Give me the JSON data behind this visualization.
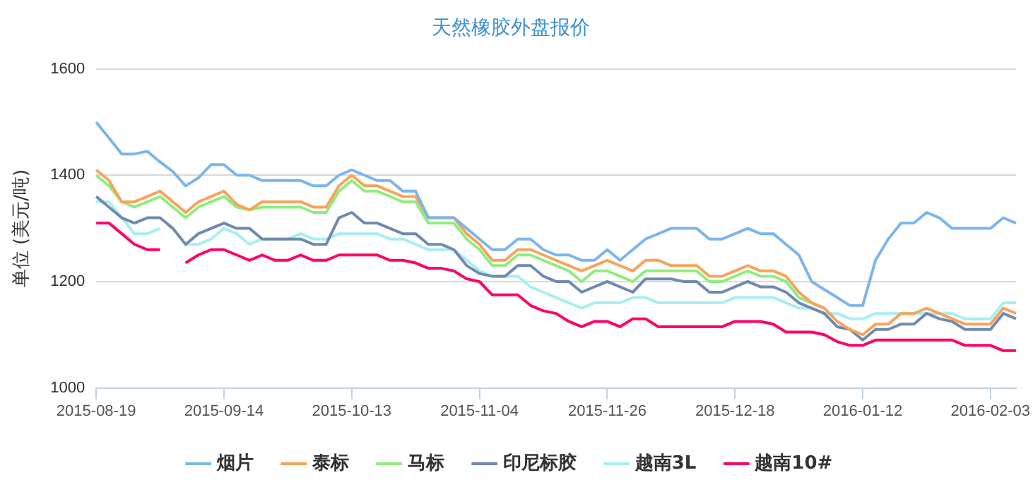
{
  "chart_data": {
    "type": "line",
    "title": "天然橡胶外盘报价",
    "ylabel": "单位 (美元/吨)",
    "categories": [
      "2015-08-19",
      null,
      null,
      null,
      null,
      null,
      null,
      null,
      null,
      null,
      "2015-09-14",
      null,
      null,
      null,
      null,
      null,
      null,
      null,
      null,
      null,
      "2015-10-13",
      null,
      null,
      null,
      null,
      null,
      null,
      null,
      null,
      null,
      "2015-11-04",
      null,
      null,
      null,
      null,
      null,
      null,
      null,
      null,
      null,
      "2015-11-26",
      null,
      null,
      null,
      null,
      null,
      null,
      null,
      null,
      null,
      "2015-12-18",
      null,
      null,
      null,
      null,
      null,
      null,
      null,
      null,
      null,
      "2016-01-12",
      null,
      null,
      null,
      null,
      null,
      null,
      null,
      null,
      null,
      "2016-02-03",
      null,
      null
    ],
    "ylim": [
      1000,
      1600
    ],
    "yticks": [
      1000,
      1200,
      1400,
      1600
    ],
    "grid": "y",
    "legend": "bottom",
    "marker": "none",
    "series": [
      {
        "name": "烟片",
        "color": "#7cb5ec",
        "values": [
          1500,
          1470,
          1440,
          1440,
          1445,
          1425,
          1407,
          1380,
          1395,
          1420,
          1420,
          1400,
          1400,
          1390,
          1390,
          1390,
          1390,
          1380,
          1380,
          1400,
          1410,
          1400,
          1390,
          1390,
          1370,
          1370,
          1320,
          1320,
          1320,
          1300,
          1280,
          1260,
          1260,
          1280,
          1280,
          1260,
          1250,
          1250,
          1240,
          1240,
          1260,
          1240,
          1260,
          1280,
          1290,
          1300,
          1300,
          1300,
          1280,
          1280,
          1290,
          1300,
          1290,
          1290,
          1270,
          1250,
          1200,
          1185,
          1170,
          1155,
          1155,
          1240,
          1280,
          1310,
          1310,
          1330,
          1320,
          1300,
          1300,
          1300,
          1300,
          1320,
          1310
        ]
      },
      {
        "name": "泰标",
        "color": "#f7a35c",
        "values": [
          1410,
          1390,
          1350,
          1350,
          1360,
          1370,
          1350,
          1330,
          1350,
          1360,
          1370,
          1345,
          1335,
          1350,
          1350,
          1350,
          1350,
          1340,
          1340,
          1380,
          1400,
          1380,
          1380,
          1370,
          1360,
          1360,
          1320,
          1320,
          1320,
          1290,
          1270,
          1240,
          1240,
          1260,
          1260,
          1250,
          1240,
          1230,
          1220,
          1230,
          1240,
          1230,
          1220,
          1240,
          1240,
          1230,
          1230,
          1230,
          1210,
          1210,
          1220,
          1230,
          1220,
          1220,
          1210,
          1180,
          1160,
          1150,
          1125,
          1110,
          1100,
          1120,
          1120,
          1140,
          1140,
          1150,
          1140,
          1130,
          1120,
          1120,
          1120,
          1150,
          1140
        ]
      },
      {
        "name": "马标",
        "color": "#90ed7d",
        "values": [
          1400,
          1380,
          1350,
          1340,
          1350,
          1360,
          1340,
          1320,
          1340,
          1350,
          1360,
          1340,
          1335,
          1340,
          1340,
          1340,
          1340,
          1330,
          1330,
          1370,
          1390,
          1370,
          1370,
          1360,
          1350,
          1350,
          1310,
          1310,
          1310,
          1280,
          1260,
          1230,
          1230,
          1250,
          1250,
          1240,
          1230,
          1220,
          1200,
          1220,
          1220,
          1210,
          1200,
          1220,
          1220,
          1220,
          1220,
          1220,
          1200,
          1200,
          1210,
          1220,
          1210,
          1210,
          1200,
          1170,
          1160,
          1150,
          null,
          null,
          null,
          null,
          null,
          null,
          null,
          null,
          null,
          null,
          null,
          null,
          null,
          null,
          null
        ]
      },
      {
        "name": "印尼标胶",
        "color": "#7189b0",
        "values": [
          1360,
          1340,
          1320,
          1310,
          1320,
          1320,
          1300,
          1270,
          1290,
          1300,
          1310,
          1300,
          1300,
          1280,
          1280,
          1280,
          1280,
          1270,
          1270,
          1320,
          1330,
          1310,
          1310,
          1300,
          1290,
          1290,
          1270,
          1270,
          1260,
          1230,
          1215,
          1210,
          1210,
          1230,
          1230,
          1210,
          1200,
          1200,
          1180,
          1190,
          1200,
          1190,
          1180,
          1205,
          1205,
          1205,
          1200,
          1200,
          1180,
          1180,
          1190,
          1200,
          1190,
          1190,
          1180,
          1160,
          1150,
          1140,
          1115,
          1110,
          1090,
          1110,
          1110,
          1120,
          1120,
          1140,
          1130,
          1125,
          1110,
          1110,
          1110,
          1140,
          1130
        ]
      },
      {
        "name": "越南3L",
        "color": "#a8eef0",
        "values": [
          1350,
          1350,
          1320,
          1290,
          1290,
          1300,
          null,
          1270,
          1270,
          1280,
          1300,
          1290,
          1270,
          1280,
          1280,
          1280,
          1290,
          1280,
          1280,
          1290,
          1290,
          1290,
          1290,
          1280,
          1280,
          1270,
          1260,
          1260,
          1260,
          1240,
          1220,
          1210,
          1210,
          1210,
          1190,
          1180,
          1170,
          1160,
          1150,
          1160,
          1160,
          1160,
          1170,
          1170,
          1160,
          1160,
          1160,
          1160,
          1160,
          1160,
          1170,
          1170,
          1170,
          1170,
          1160,
          1150,
          1150,
          1140,
          1140,
          1130,
          1130,
          1140,
          1140,
          1140,
          1140,
          1140,
          1140,
          1140,
          1130,
          1130,
          1130,
          1160,
          1160
        ]
      },
      {
        "name": "越南10#",
        "color": "#ff0066",
        "values": [
          1310,
          1310,
          1290,
          1270,
          1260,
          1260,
          null,
          1235,
          1250,
          1260,
          1260,
          1250,
          1240,
          1250,
          1240,
          1240,
          1250,
          1240,
          1240,
          1250,
          1250,
          1250,
          1250,
          1240,
          1240,
          1235,
          1225,
          1225,
          1220,
          1205,
          1200,
          1175,
          1175,
          1175,
          1155,
          1145,
          1140,
          1125,
          1115,
          1125,
          1125,
          1115,
          1130,
          1130,
          1115,
          1115,
          1115,
          1115,
          1115,
          1115,
          1125,
          1125,
          1125,
          1120,
          1105,
          1105,
          1105,
          1100,
          1087,
          1080,
          1080,
          1090,
          1090,
          1090,
          1090,
          1090,
          1090,
          1090,
          1080,
          1080,
          1080,
          1070,
          1070
        ]
      }
    ]
  }
}
